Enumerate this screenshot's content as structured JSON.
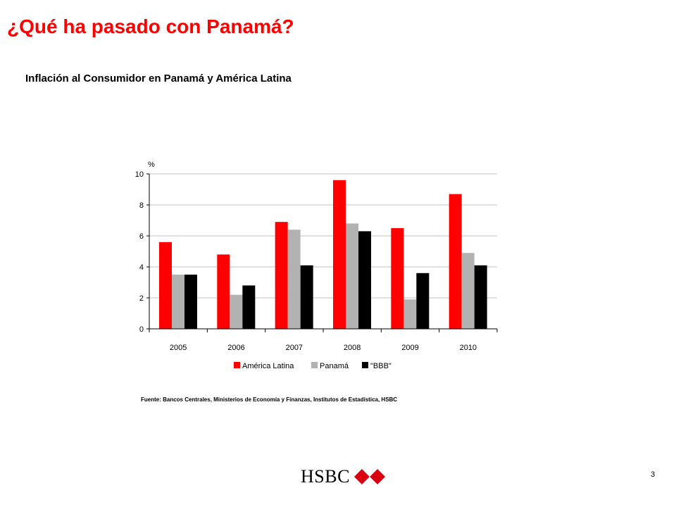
{
  "slide": {
    "title": "¿Qué ha pasado con Panamá?",
    "subtitle": "Inflación al Consumidor en Panamá y América Latina",
    "source": "Fuente: Bancos Centrales, Ministerios de Economía y Finanzas, Institutos de Estadística, HSBC",
    "logo_text": "HSBC",
    "logo_icon": "hsbc-hexagon-logo",
    "page_number": "3"
  },
  "chart_data": {
    "type": "bar",
    "title": "",
    "xlabel": "",
    "ylabel": "%",
    "ylim": [
      0,
      10
    ],
    "yticks": [
      0,
      2,
      4,
      6,
      8,
      10
    ],
    "grid": true,
    "legend_position": "bottom",
    "categories": [
      "2005",
      "2006",
      "2007",
      "2008",
      "2009",
      "2010"
    ],
    "series": [
      {
        "name": "América Latina",
        "color": "#ff0000",
        "values": [
          5.6,
          4.8,
          6.9,
          9.6,
          6.5,
          8.7
        ]
      },
      {
        "name": "Panamá",
        "color": "#b2b2b2",
        "values": [
          3.5,
          2.2,
          6.4,
          6.8,
          1.9,
          4.9
        ]
      },
      {
        "name": "\"BBB\"",
        "color": "#000000",
        "values": [
          3.5,
          2.8,
          4.1,
          6.3,
          3.6,
          4.1
        ]
      }
    ]
  }
}
